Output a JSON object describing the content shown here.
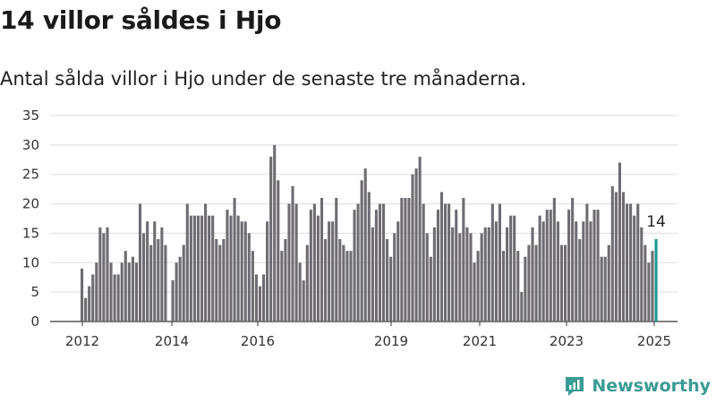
{
  "title": "14 villor såldes i Hjo",
  "subtitle": "Antal sålda villor i Hjo under de senaste tre månaderna.",
  "brand": {
    "name": "Newsworthy",
    "logo_icon": "newsworthy-chart-logo-icon"
  },
  "colors": {
    "bar": "#6e6c72",
    "highlight": "#1b9a8f",
    "grid": "#dddddd",
    "axis": "#333333",
    "brand": "#3a9b93"
  },
  "chart_data": {
    "type": "bar",
    "x_ticks": [
      "2012",
      "2014",
      "2016",
      "2019",
      "2021",
      "2023",
      "2025"
    ],
    "y_ticks": [
      "0",
      "5",
      "10",
      "15",
      "20",
      "25",
      "30",
      "35"
    ],
    "ylim": [
      0,
      35
    ],
    "grid": true,
    "last_value_label": "14",
    "values": [
      9,
      4,
      6,
      8,
      10,
      16,
      15,
      16,
      10,
      8,
      8,
      10,
      12,
      10,
      11,
      10,
      20,
      15,
      17,
      13,
      17,
      14,
      16,
      13,
      0,
      7,
      10,
      11,
      13,
      20,
      18,
      18,
      18,
      18,
      20,
      18,
      18,
      14,
      13,
      14,
      19,
      18,
      21,
      18,
      17,
      17,
      15,
      12,
      8,
      6,
      8,
      17,
      28,
      30,
      24,
      12,
      14,
      20,
      23,
      20,
      10,
      7,
      13,
      19,
      20,
      18,
      21,
      14,
      17,
      17,
      21,
      14,
      13,
      12,
      12,
      19,
      20,
      24,
      26,
      22,
      16,
      19,
      20,
      20,
      14,
      11,
      15,
      17,
      21,
      21,
      21,
      25,
      26,
      28,
      20,
      15,
      11,
      16,
      19,
      22,
      20,
      20,
      16,
      19,
      15,
      21,
      16,
      15,
      10,
      12,
      15,
      16,
      16,
      20,
      17,
      20,
      12,
      16,
      18,
      18,
      12,
      5,
      11,
      13,
      16,
      13,
      18,
      17,
      19,
      19,
      21,
      17,
      13,
      13,
      19,
      21,
      17,
      14,
      17,
      20,
      17,
      19,
      19,
      11,
      11,
      13,
      23,
      22,
      27,
      22,
      20,
      20,
      18,
      20,
      16,
      13,
      10,
      12,
      14
    ]
  }
}
